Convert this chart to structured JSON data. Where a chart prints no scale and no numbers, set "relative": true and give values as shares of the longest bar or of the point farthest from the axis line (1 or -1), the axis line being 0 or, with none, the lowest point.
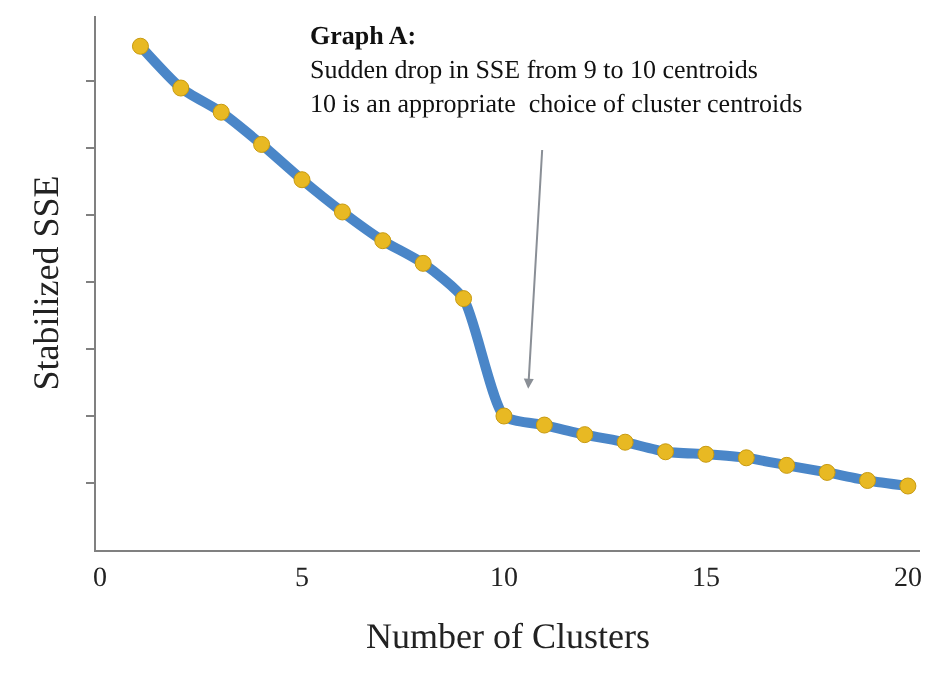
{
  "chart_data": {
    "type": "line",
    "relative": true,
    "xlabel": "Number of Clusters",
    "ylabel": "Stabilized SSE",
    "x": [
      1,
      2,
      3,
      4,
      5,
      6,
      7,
      8,
      9,
      10,
      11,
      12,
      13,
      14,
      15,
      16,
      17,
      18,
      19,
      20
    ],
    "series": [
      {
        "color": "#4a86c8",
        "values": [
          1,
          0.917,
          0.869,
          0.805,
          0.735,
          0.671,
          0.614,
          0.569,
          0.499,
          0.266,
          0.248,
          0.229,
          0.214,
          0.195,
          0.19,
          0.183,
          0.168,
          0.154,
          0.138,
          0.127
        ]
      }
    ],
    "xlim": [
      -0.1,
      20.3
    ],
    "xticks": [
      0,
      5,
      10,
      15,
      20
    ],
    "marker": "circle",
    "line_style": "solid",
    "legend": false,
    "annotations": [
      "Graph A:\nSudden drop in SSE from 9 to 10 centroids\n10 is an appropriate  choice of cluster centroids"
    ]
  }
}
